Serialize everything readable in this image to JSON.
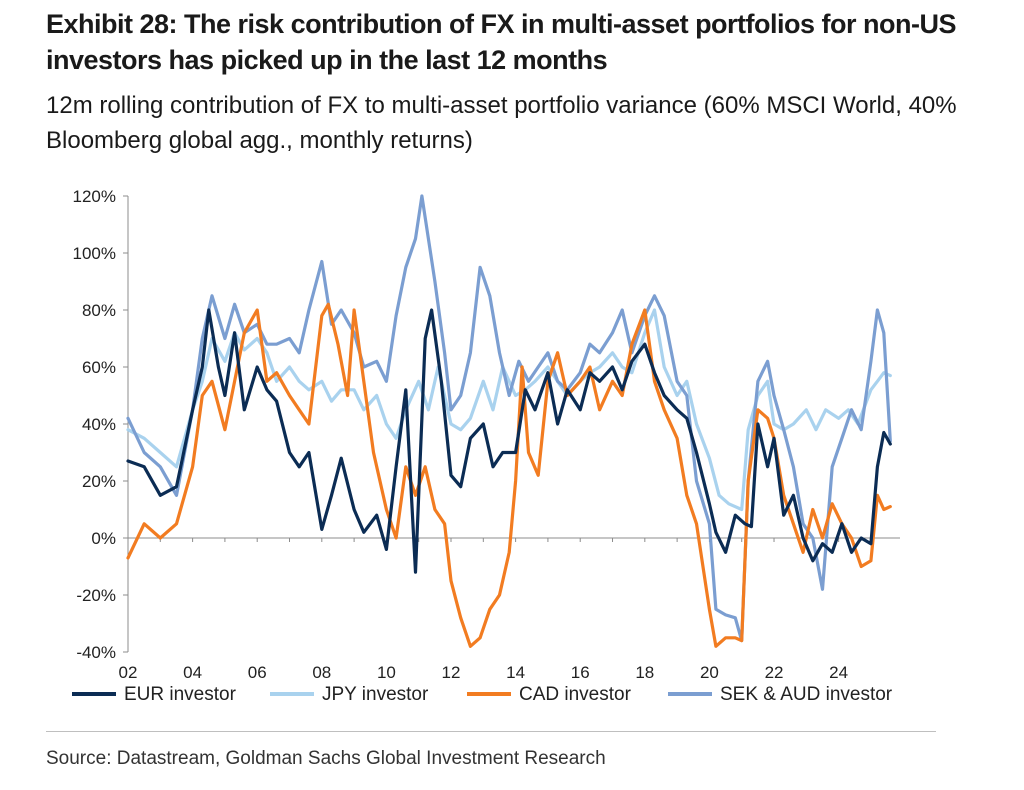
{
  "title": "Exhibit 28: The risk contribution of FX in multi-asset portfolios for non-US investors has picked up in the last 12 months",
  "subtitle": "12m rolling contribution of FX to multi-asset portfolio variance (60% MSCI World, 40% Bloomberg global agg., monthly returns)",
  "source": "Source: Datastream, Goldman Sachs Global Investment Research",
  "chart_data": {
    "type": "line",
    "ylim": [
      -0.4,
      1.2
    ],
    "xlim": [
      2002,
      2025.9
    ],
    "yticks": [
      -0.4,
      -0.2,
      0,
      0.2,
      0.4,
      0.6,
      0.8,
      1.0,
      1.2
    ],
    "ytick_labels": [
      "-40%",
      "-20%",
      "0%",
      "20%",
      "40%",
      "60%",
      "80%",
      "100%",
      "120%"
    ],
    "xticks": [
      2002,
      2004,
      2006,
      2008,
      2010,
      2012,
      2014,
      2016,
      2018,
      2020,
      2022,
      2024
    ],
    "xtick_labels": [
      "02",
      "04",
      "06",
      "08",
      "10",
      "12",
      "14",
      "16",
      "18",
      "20",
      "22",
      "24"
    ],
    "grid": false,
    "legend_position": "bottom",
    "series": [
      {
        "name": "EUR investor",
        "color": "#0b2c54",
        "x": [
          2002.0,
          2002.5,
          2003.0,
          2003.5,
          2004.0,
          2004.3,
          2004.5,
          2004.8,
          2005.0,
          2005.3,
          2005.6,
          2006.0,
          2006.3,
          2006.6,
          2007.0,
          2007.3,
          2007.6,
          2008.0,
          2008.3,
          2008.6,
          2009.0,
          2009.3,
          2009.7,
          2010.0,
          2010.3,
          2010.6,
          2010.9,
          2011.2,
          2011.4,
          2011.7,
          2012.0,
          2012.3,
          2012.6,
          2013.0,
          2013.3,
          2013.6,
          2014.0,
          2014.3,
          2014.6,
          2015.0,
          2015.3,
          2015.6,
          2016.0,
          2016.3,
          2016.6,
          2017.0,
          2017.3,
          2017.6,
          2018.0,
          2018.3,
          2018.6,
          2019.0,
          2019.3,
          2019.6,
          2020.0,
          2020.2,
          2020.5,
          2020.8,
          2021.1,
          2021.3,
          2021.5,
          2021.8,
          2022.0,
          2022.3,
          2022.6,
          2022.9,
          2023.2,
          2023.5,
          2023.8,
          2024.1,
          2024.4,
          2024.7,
          2025.0,
          2025.2,
          2025.4,
          2025.6
        ],
        "y": [
          0.27,
          0.25,
          0.15,
          0.18,
          0.45,
          0.6,
          0.8,
          0.6,
          0.5,
          0.72,
          0.45,
          0.6,
          0.52,
          0.48,
          0.3,
          0.25,
          0.3,
          0.03,
          0.15,
          0.28,
          0.1,
          0.02,
          0.08,
          -0.04,
          0.25,
          0.52,
          -0.12,
          0.7,
          0.8,
          0.55,
          0.22,
          0.18,
          0.35,
          0.4,
          0.25,
          0.3,
          0.3,
          0.52,
          0.45,
          0.58,
          0.4,
          0.52,
          0.45,
          0.58,
          0.55,
          0.6,
          0.52,
          0.62,
          0.68,
          0.58,
          0.5,
          0.45,
          0.42,
          0.3,
          0.12,
          0.02,
          -0.05,
          0.08,
          0.05,
          0.04,
          0.4,
          0.25,
          0.35,
          0.08,
          0.15,
          0.0,
          -0.08,
          -0.02,
          -0.05,
          0.05,
          -0.05,
          0.0,
          -0.02,
          0.25,
          0.37,
          0.33
        ]
      },
      {
        "name": "JPY investor",
        "color": "#a9d2ee",
        "x": [
          2002.0,
          2002.5,
          2003.0,
          2003.5,
          2004.0,
          2004.3,
          2004.6,
          2005.0,
          2005.3,
          2005.6,
          2006.0,
          2006.3,
          2006.6,
          2007.0,
          2007.3,
          2007.6,
          2008.0,
          2008.3,
          2008.6,
          2009.0,
          2009.3,
          2009.7,
          2010.0,
          2010.3,
          2010.6,
          2011.0,
          2011.3,
          2011.6,
          2012.0,
          2012.3,
          2012.6,
          2013.0,
          2013.3,
          2013.6,
          2014.0,
          2014.3,
          2014.6,
          2015.0,
          2015.3,
          2015.6,
          2016.0,
          2016.3,
          2016.6,
          2017.0,
          2017.3,
          2017.6,
          2018.0,
          2018.3,
          2018.6,
          2019.0,
          2019.3,
          2019.6,
          2020.0,
          2020.3,
          2020.6,
          2021.0,
          2021.2,
          2021.5,
          2021.8,
          2022.0,
          2022.3,
          2022.6,
          2023.0,
          2023.3,
          2023.6,
          2024.0,
          2024.3,
          2024.6,
          2025.0,
          2025.2,
          2025.4,
          2025.6
        ],
        "y": [
          0.38,
          0.35,
          0.3,
          0.25,
          0.45,
          0.55,
          0.7,
          0.62,
          0.72,
          0.66,
          0.7,
          0.65,
          0.55,
          0.6,
          0.55,
          0.52,
          0.55,
          0.48,
          0.52,
          0.52,
          0.45,
          0.5,
          0.4,
          0.35,
          0.45,
          0.55,
          0.45,
          0.6,
          0.4,
          0.38,
          0.42,
          0.55,
          0.45,
          0.6,
          0.5,
          0.52,
          0.55,
          0.6,
          0.55,
          0.5,
          0.55,
          0.58,
          0.6,
          0.65,
          0.6,
          0.58,
          0.72,
          0.8,
          0.6,
          0.5,
          0.55,
          0.4,
          0.28,
          0.15,
          0.12,
          0.1,
          0.38,
          0.5,
          0.55,
          0.4,
          0.38,
          0.4,
          0.45,
          0.38,
          0.45,
          0.42,
          0.45,
          0.4,
          0.52,
          0.55,
          0.58,
          0.57
        ]
      },
      {
        "name": "CAD investor",
        "color": "#f27c21",
        "x": [
          2002.0,
          2002.5,
          2003.0,
          2003.5,
          2004.0,
          2004.3,
          2004.6,
          2005.0,
          2005.3,
          2005.6,
          2006.0,
          2006.3,
          2006.6,
          2007.0,
          2007.3,
          2007.6,
          2008.0,
          2008.2,
          2008.5,
          2008.8,
          2009.0,
          2009.3,
          2009.6,
          2010.0,
          2010.3,
          2010.6,
          2010.9,
          2011.2,
          2011.5,
          2011.8,
          2012.0,
          2012.3,
          2012.6,
          2012.9,
          2013.2,
          2013.5,
          2013.8,
          2014.0,
          2014.2,
          2014.4,
          2014.7,
          2015.0,
          2015.3,
          2015.6,
          2016.0,
          2016.3,
          2016.6,
          2017.0,
          2017.3,
          2017.6,
          2018.0,
          2018.3,
          2018.6,
          2019.0,
          2019.3,
          2019.6,
          2020.0,
          2020.2,
          2020.5,
          2020.8,
          2021.0,
          2021.2,
          2021.5,
          2021.8,
          2022.0,
          2022.3,
          2022.6,
          2022.9,
          2023.2,
          2023.5,
          2023.8,
          2024.1,
          2024.4,
          2024.7,
          2025.0,
          2025.2,
          2025.4,
          2025.6
        ],
        "y": [
          -0.07,
          0.05,
          0.0,
          0.05,
          0.25,
          0.5,
          0.55,
          0.38,
          0.55,
          0.72,
          0.8,
          0.55,
          0.58,
          0.5,
          0.45,
          0.4,
          0.78,
          0.82,
          0.68,
          0.5,
          0.8,
          0.55,
          0.3,
          0.1,
          0.0,
          0.25,
          0.15,
          0.25,
          0.1,
          0.05,
          -0.15,
          -0.28,
          -0.38,
          -0.35,
          -0.25,
          -0.2,
          -0.05,
          0.2,
          0.6,
          0.3,
          0.22,
          0.55,
          0.65,
          0.5,
          0.55,
          0.6,
          0.45,
          0.55,
          0.5,
          0.68,
          0.8,
          0.55,
          0.45,
          0.35,
          0.15,
          0.05,
          -0.25,
          -0.38,
          -0.35,
          -0.35,
          -0.36,
          0.2,
          0.45,
          0.42,
          0.35,
          0.15,
          0.05,
          -0.05,
          0.1,
          0.0,
          0.12,
          0.05,
          0.0,
          -0.1,
          -0.08,
          0.15,
          0.1,
          0.11
        ]
      },
      {
        "name": "SEK & AUD investor",
        "color": "#7b9ed1",
        "x": [
          2002.0,
          2002.5,
          2003.0,
          2003.5,
          2004.0,
          2004.3,
          2004.6,
          2005.0,
          2005.3,
          2005.6,
          2006.0,
          2006.3,
          2006.6,
          2007.0,
          2007.3,
          2007.6,
          2008.0,
          2008.3,
          2008.6,
          2009.0,
          2009.3,
          2009.7,
          2010.0,
          2010.3,
          2010.6,
          2010.9,
          2011.1,
          2011.3,
          2011.5,
          2011.8,
          2012.0,
          2012.3,
          2012.6,
          2012.9,
          2013.2,
          2013.5,
          2013.8,
          2014.1,
          2014.4,
          2014.7,
          2015.0,
          2015.3,
          2015.6,
          2016.0,
          2016.3,
          2016.6,
          2017.0,
          2017.3,
          2017.6,
          2018.0,
          2018.3,
          2018.6,
          2019.0,
          2019.3,
          2019.6,
          2020.0,
          2020.2,
          2020.5,
          2020.8,
          2021.0,
          2021.2,
          2021.5,
          2021.8,
          2022.0,
          2022.3,
          2022.6,
          2022.9,
          2023.2,
          2023.5,
          2023.8,
          2024.1,
          2024.4,
          2024.7,
          2025.0,
          2025.2,
          2025.4,
          2025.6
        ],
        "y": [
          0.42,
          0.3,
          0.25,
          0.15,
          0.45,
          0.7,
          0.85,
          0.7,
          0.82,
          0.72,
          0.75,
          0.68,
          0.68,
          0.7,
          0.65,
          0.8,
          0.97,
          0.75,
          0.8,
          0.72,
          0.6,
          0.62,
          0.55,
          0.78,
          0.95,
          1.05,
          1.2,
          1.05,
          0.9,
          0.65,
          0.45,
          0.5,
          0.65,
          0.95,
          0.85,
          0.65,
          0.5,
          0.62,
          0.55,
          0.6,
          0.65,
          0.55,
          0.52,
          0.58,
          0.68,
          0.65,
          0.72,
          0.8,
          0.65,
          0.78,
          0.85,
          0.78,
          0.55,
          0.5,
          0.2,
          0.05,
          -0.25,
          -0.27,
          -0.28,
          -0.36,
          0.2,
          0.55,
          0.62,
          0.5,
          0.38,
          0.25,
          0.05,
          0.0,
          -0.18,
          0.25,
          0.35,
          0.45,
          0.38,
          0.62,
          0.8,
          0.72,
          0.34
        ]
      }
    ]
  }
}
